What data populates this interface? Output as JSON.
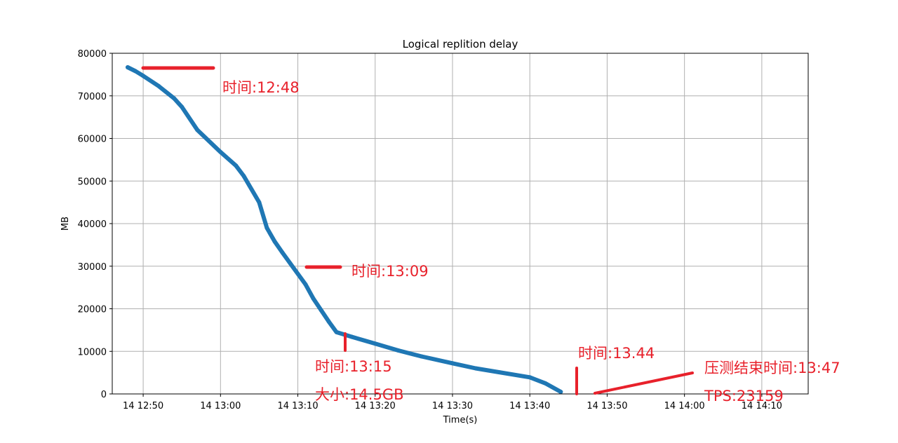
{
  "chart_data": {
    "type": "line",
    "title": "Logical replition delay",
    "xlabel": "Time(s)",
    "ylabel": "MB",
    "grid": true,
    "ylim": [
      0,
      80000
    ],
    "xlim": [
      "14 12:46",
      "14 14:16"
    ],
    "x_ticks": [
      "14 12:50",
      "14 13:00",
      "14 13:10",
      "14 13:20",
      "14 13:30",
      "14 13:40",
      "14 13:50",
      "14 14:00",
      "14 14:10"
    ],
    "y_ticks": [
      0,
      10000,
      20000,
      30000,
      40000,
      50000,
      60000,
      70000,
      80000
    ],
    "series": [
      {
        "color": "#1f77b4",
        "x": [
          "14 12:48",
          "14 12:49",
          "14 12:50",
          "14 12:52",
          "14 12:54",
          "14 12:55",
          "14 12:57",
          "14 13:00",
          "14 13:02",
          "14 13:03",
          "14 13:05",
          "14 13:06",
          "14 13:07",
          "14 13:08",
          "14 13:09",
          "14 13:11",
          "14 13:12",
          "14 13:13",
          "14 13:14",
          "14 13:15",
          "14 13:17",
          "14 13:20",
          "14 13:23",
          "14 13:26",
          "14 13:30",
          "14 13:33",
          "14 13:36",
          "14 13:40",
          "14 13:42",
          "14 13:44"
        ],
        "y": [
          76700,
          75800,
          74700,
          72300,
          69400,
          67400,
          62000,
          56800,
          53600,
          51200,
          45000,
          39000,
          35800,
          33200,
          30700,
          25700,
          22400,
          19700,
          17000,
          14500,
          13400,
          11800,
          10200,
          8800,
          7200,
          6000,
          5100,
          3900,
          2500,
          500
        ]
      }
    ],
    "annotations": [
      {
        "text": "时间:12:48",
        "color": "#e8212b"
      },
      {
        "text": "时间:13:09",
        "color": "#e8212b"
      },
      {
        "text": "时间:13:15",
        "color": "#e8212b"
      },
      {
        "text": "大小:14.5GB",
        "color": "#e8212b"
      },
      {
        "text": "时间:13.44",
        "color": "#e8212b"
      },
      {
        "text": "压测结束时间:13:47",
        "color": "#e8212b"
      },
      {
        "text": "TPS:23159",
        "color": "#e8212b"
      }
    ]
  }
}
